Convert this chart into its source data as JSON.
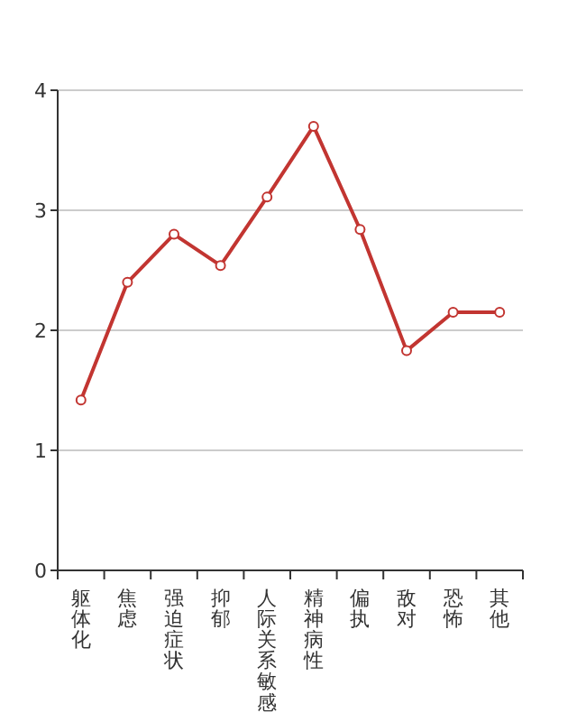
{
  "chart_data": {
    "type": "line",
    "categories": [
      "躯体化",
      "焦虑",
      "强迫症状",
      "抑郁",
      "人际关系敏感",
      "精神病性",
      "偏执",
      "敌对",
      "恐怖",
      "其他"
    ],
    "series": [
      {
        "color": "#c23531",
        "values": [
          1.42,
          2.4,
          2.8,
          2.54,
          3.11,
          3.7,
          2.84,
          1.83,
          2.15,
          2.15
        ]
      }
    ],
    "ylim": [
      0,
      4
    ],
    "yticks": [
      0,
      1,
      2,
      3,
      4
    ],
    "grid": "y",
    "marker": "circle",
    "line_style": "solid"
  }
}
